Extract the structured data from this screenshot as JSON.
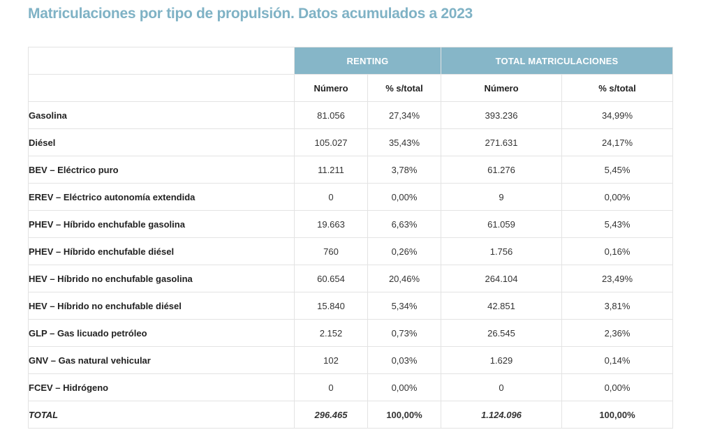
{
  "title": "Matriculaciones por tipo de propulsión. Datos acumulados a 2023",
  "colors": {
    "title": "#7fb2c5",
    "header_bg": "#86b6c8",
    "header_text": "#ffffff"
  },
  "table": {
    "group_headers": {
      "renting": "RENTING",
      "total": "TOTAL MATRICULACIONES"
    },
    "sub_headers": {
      "renting_number": "Número",
      "renting_pct": "% s/total",
      "total_number": "Número",
      "total_pct": "% s/total"
    },
    "rows": [
      {
        "label": "Gasolina",
        "renting_number": "81.056",
        "renting_pct": "27,34%",
        "total_number": "393.236",
        "total_pct": "34,99%"
      },
      {
        "label": "Diésel",
        "renting_number": "105.027",
        "renting_pct": "35,43%",
        "total_number": "271.631",
        "total_pct": "24,17%"
      },
      {
        "label": "BEV – Eléctrico puro",
        "renting_number": "11.211",
        "renting_pct": "3,78%",
        "total_number": "61.276",
        "total_pct": "5,45%"
      },
      {
        "label": "EREV – Eléctrico autonomía extendida",
        "renting_number": "0",
        "renting_pct": "0,00%",
        "total_number": "9",
        "total_pct": "0,00%"
      },
      {
        "label": "PHEV – Híbrido enchufable gasolina",
        "renting_number": "19.663",
        "renting_pct": "6,63%",
        "total_number": "61.059",
        "total_pct": "5,43%"
      },
      {
        "label": "PHEV – Híbrido enchufable diésel",
        "renting_number": "760",
        "renting_pct": "0,26%",
        "total_number": "1.756",
        "total_pct": "0,16%"
      },
      {
        "label": "HEV – Híbrido no enchufable gasolina",
        "renting_number": "60.654",
        "renting_pct": "20,46%",
        "total_number": "264.104",
        "total_pct": "23,49%"
      },
      {
        "label": "HEV – Híbrido no enchufable diésel",
        "renting_number": "15.840",
        "renting_pct": "5,34%",
        "total_number": "42.851",
        "total_pct": "3,81%"
      },
      {
        "label": "GLP – Gas licuado petróleo",
        "renting_number": "2.152",
        "renting_pct": "0,73%",
        "total_number": "26.545",
        "total_pct": "2,36%"
      },
      {
        "label": "GNV – Gas natural vehicular",
        "renting_number": "102",
        "renting_pct": "0,03%",
        "total_number": "1.629",
        "total_pct": "0,14%"
      },
      {
        "label": "FCEV – Hidrógeno",
        "renting_number": "0",
        "renting_pct": "0,00%",
        "total_number": "0",
        "total_pct": "0,00%"
      }
    ],
    "total": {
      "label": "TOTAL",
      "renting_number": "296.465",
      "renting_pct": "100,00%",
      "total_number": "1.124.096",
      "total_pct": "100,00%"
    }
  }
}
